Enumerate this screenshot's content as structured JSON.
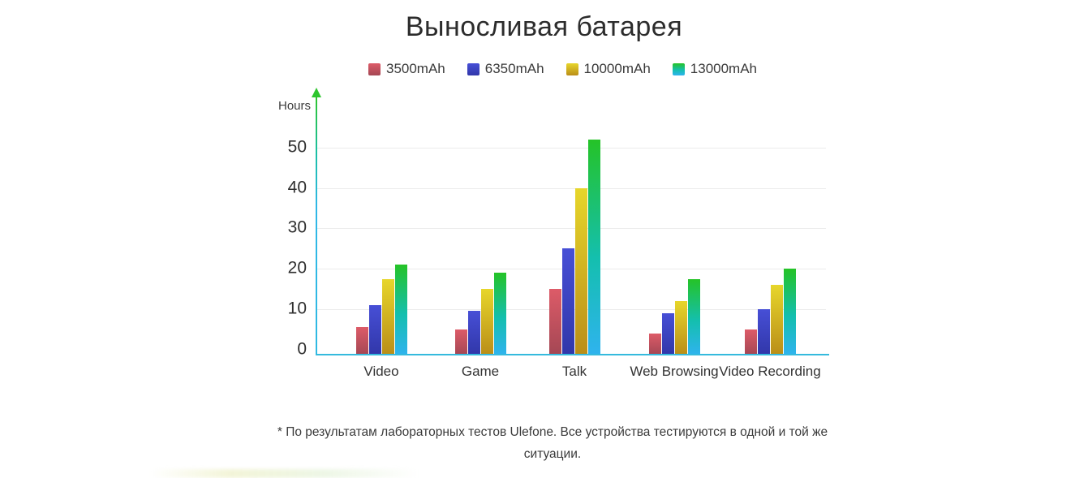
{
  "title": "Выносливая батарея",
  "footnote": "* По результатам лабораторных тестов Ulefone. Все устройства тестируются в одной и той же ситуации.",
  "chart_data": {
    "type": "bar",
    "title": "Выносливая батарея",
    "xlabel": "",
    "ylabel": "Hours",
    "ylim": [
      0,
      62
    ],
    "yticks": [
      0,
      10,
      20,
      30,
      40,
      50
    ],
    "grid": true,
    "legend_position": "top-center",
    "categories": [
      "Video",
      "Game",
      "Talk",
      "Web Browsing",
      "Video Recording"
    ],
    "series": [
      {
        "name": "3500mAh",
        "values": [
          5.5,
          5,
          15,
          4,
          5
        ],
        "color_top": "#dd5b68",
        "color_bottom": "#a44754"
      },
      {
        "name": "6350mAh",
        "values": [
          11,
          9.5,
          25,
          9,
          10
        ],
        "color_top": "#474fd6",
        "color_bottom": "#3137a9"
      },
      {
        "name": "10000mAh",
        "values": [
          17.5,
          15,
          40,
          12,
          16
        ],
        "color_top": "#e7d62b",
        "color_bottom": "#ba8e18"
      },
      {
        "name": "13000mAh",
        "values": [
          21,
          19,
          52,
          17.5,
          20
        ],
        "color_top": "#25c327",
        "color_mid": "#14bfae",
        "color_bottom": "#2fb3ee"
      }
    ],
    "axis_colors": {
      "y_axis_top": "#2ec52e",
      "y_axis_bottom": "#2fb9e2",
      "x_axis": "#35badd",
      "gridline": "#ececec"
    }
  }
}
